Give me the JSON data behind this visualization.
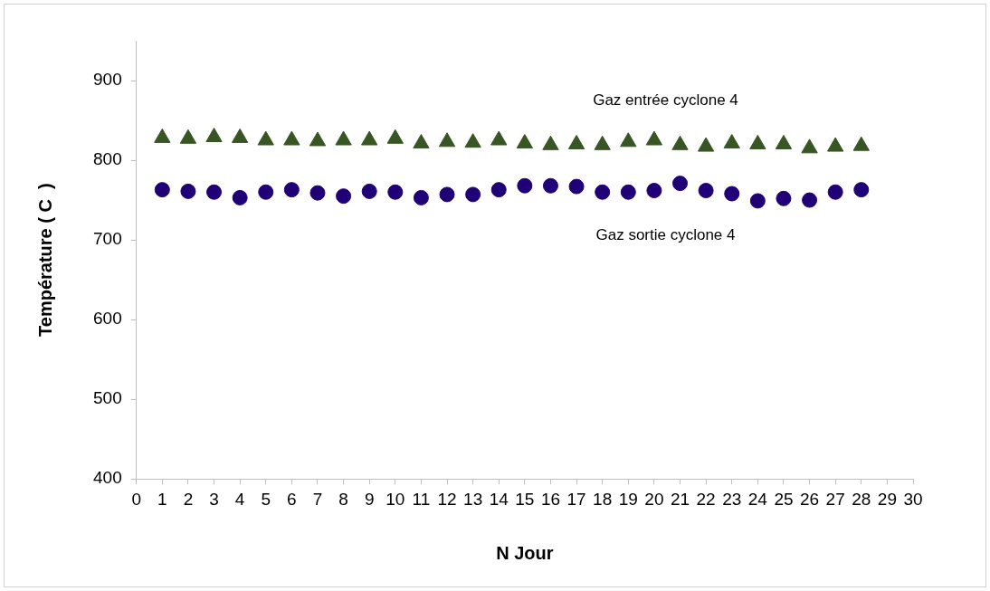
{
  "chart_data": {
    "type": "scatter",
    "xlabel": "N Jour",
    "ylabel": "Température ( C  )",
    "x": [
      1,
      2,
      3,
      4,
      5,
      6,
      7,
      8,
      9,
      10,
      11,
      12,
      13,
      14,
      15,
      16,
      17,
      18,
      19,
      20,
      21,
      22,
      23,
      24,
      25,
      26,
      27,
      28
    ],
    "series": [
      {
        "name": "Gaz entrée cyclone 4",
        "color": "#375623",
        "marker": "triangle",
        "values": [
          828,
          827,
          829,
          828,
          825,
          825,
          824,
          825,
          825,
          827,
          821,
          823,
          822,
          825,
          821,
          819,
          820,
          819,
          823,
          825,
          819,
          817,
          821,
          820,
          820,
          815,
          817,
          818
        ]
      },
      {
        "name": "Gaz sortie cyclone 4",
        "color": "#1f0077",
        "marker": "circle",
        "values": [
          763,
          761,
          760,
          753,
          760,
          763,
          759,
          755,
          761,
          760,
          753,
          757,
          757,
          763,
          768,
          768,
          767,
          760,
          760,
          762,
          771,
          762,
          758,
          749,
          752,
          750,
          760,
          763
        ]
      }
    ],
    "xlim": [
      0,
      30
    ],
    "xticks": [
      0,
      1,
      2,
      3,
      4,
      5,
      6,
      7,
      8,
      9,
      10,
      11,
      12,
      13,
      14,
      15,
      16,
      17,
      18,
      19,
      20,
      21,
      22,
      23,
      24,
      25,
      26,
      27,
      28,
      29,
      30
    ],
    "ylim": [
      400,
      950
    ],
    "yticks": [
      400,
      500,
      600,
      700,
      800,
      900
    ],
    "grid": false,
    "legend": false
  }
}
